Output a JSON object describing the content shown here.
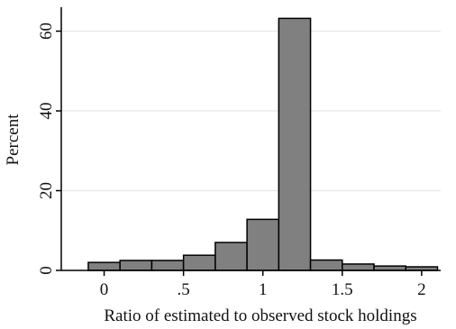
{
  "chart_data": {
    "type": "bar",
    "title": "",
    "xlabel": "Ratio of estimated to observed stock holdings",
    "ylabel": "Percent",
    "xlim": [
      -0.27,
      2.12
    ],
    "ylim": [
      0,
      66
    ],
    "grid": true,
    "bar_color": "#808080",
    "bar_edge_color": "#000000",
    "gridline_color": "#e6e6e6",
    "x_ticks": [
      {
        "value": 0,
        "label": "0"
      },
      {
        "value": 0.5,
        "label": ".5"
      },
      {
        "value": 1,
        "label": "1"
      },
      {
        "value": 1.5,
        "label": "1.5"
      },
      {
        "value": 2,
        "label": "2"
      }
    ],
    "y_ticks": [
      {
        "value": 0,
        "label": "0"
      },
      {
        "value": 20,
        "label": "20"
      },
      {
        "value": 40,
        "label": "40"
      },
      {
        "value": 60,
        "label": "60"
      }
    ],
    "bins": [
      {
        "x0": -0.1,
        "x1": 0.1,
        "value": 2.0
      },
      {
        "x0": 0.1,
        "x1": 0.3,
        "value": 2.5
      },
      {
        "x0": 0.3,
        "x1": 0.5,
        "value": 2.5
      },
      {
        "x0": 0.5,
        "x1": 0.7,
        "value": 3.8
      },
      {
        "x0": 0.7,
        "x1": 0.9,
        "value": 7.0
      },
      {
        "x0": 0.9,
        "x1": 1.1,
        "value": 12.8
      },
      {
        "x0": 1.1,
        "x1": 1.3,
        "value": 63.2
      },
      {
        "x0": 1.3,
        "x1": 1.5,
        "value": 2.6
      },
      {
        "x0": 1.5,
        "x1": 1.7,
        "value": 1.6
      },
      {
        "x0": 1.7,
        "x1": 1.9,
        "value": 1.1
      },
      {
        "x0": 1.9,
        "x1": 2.1,
        "value": 0.9
      }
    ]
  }
}
